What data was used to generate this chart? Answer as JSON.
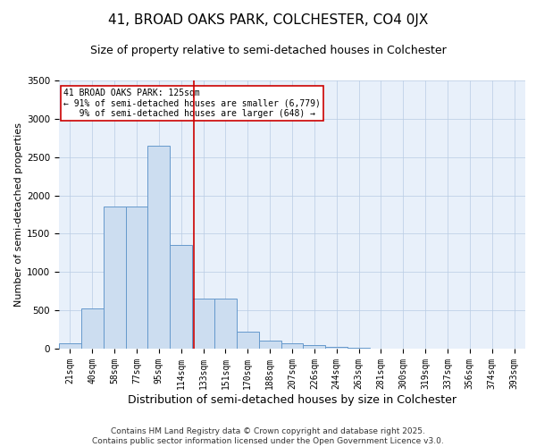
{
  "title": "41, BROAD OAKS PARK, COLCHESTER, CO4 0JX",
  "subtitle": "Size of property relative to semi-detached houses in Colchester",
  "xlabel": "Distribution of semi-detached houses by size in Colchester",
  "ylabel": "Number of semi-detached properties",
  "bar_labels": [
    "21sqm",
    "40sqm",
    "58sqm",
    "77sqm",
    "95sqm",
    "114sqm",
    "133sqm",
    "151sqm",
    "170sqm",
    "188sqm",
    "207sqm",
    "226sqm",
    "244sqm",
    "263sqm",
    "281sqm",
    "300sqm",
    "319sqm",
    "337sqm",
    "356sqm",
    "374sqm",
    "393sqm"
  ],
  "bar_values": [
    75,
    530,
    1850,
    1850,
    2650,
    1350,
    650,
    650,
    220,
    110,
    75,
    50,
    25,
    8,
    3,
    2,
    1,
    1,
    0,
    0,
    0
  ],
  "bar_color": "#ccddf0",
  "bar_edge_color": "#6699cc",
  "grid_color": "#b8cce4",
  "background_color": "#e8f0fa",
  "ylim": [
    0,
    3500
  ],
  "yticks": [
    0,
    500,
    1000,
    1500,
    2000,
    2500,
    3000,
    3500
  ],
  "property_line_color": "#cc0000",
  "annotation_text": "41 BROAD OAKS PARK: 125sqm\n← 91% of semi-detached houses are smaller (6,779)\n   9% of semi-detached houses are larger (648) →",
  "annotation_box_color": "#cc0000",
  "footer_text": "Contains HM Land Registry data © Crown copyright and database right 2025.\nContains public sector information licensed under the Open Government Licence v3.0.",
  "title_fontsize": 11,
  "subtitle_fontsize": 9,
  "xlabel_fontsize": 9,
  "ylabel_fontsize": 8,
  "annotation_fontsize": 7,
  "footer_fontsize": 6.5
}
